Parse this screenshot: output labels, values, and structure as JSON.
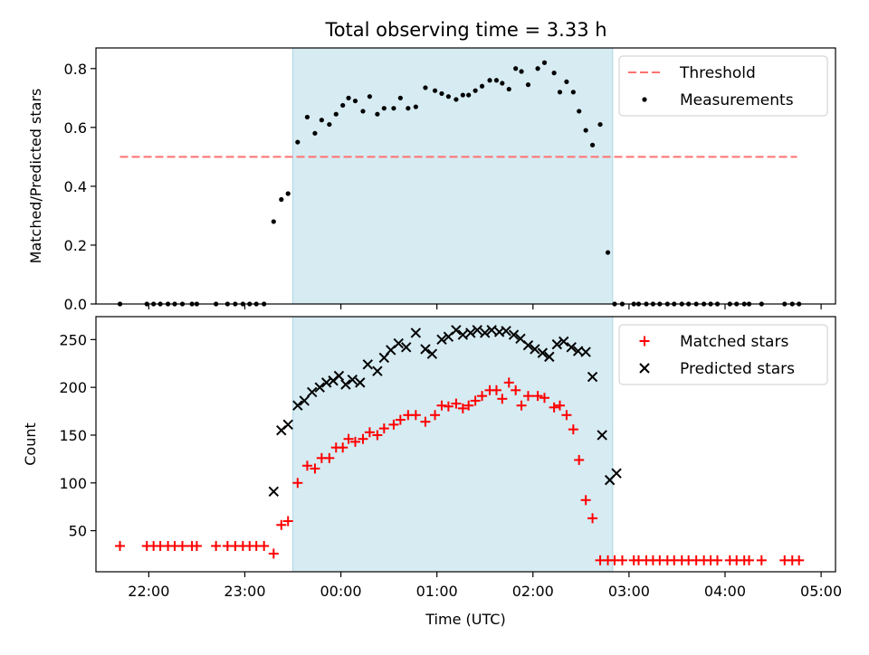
{
  "title": "Total observing time = 3.33 h",
  "colors": {
    "shade": "#add8e6",
    "threshold": "#ff7070",
    "measurement": "#000000",
    "matched": "#ff0000",
    "predicted": "#000000"
  },
  "chart_data": [
    {
      "type": "scatter",
      "panel": "top",
      "ylabel": "Matched/Predicted stars",
      "xlabel": "",
      "xlim": [
        21.45,
        29.15
      ],
      "ylim": [
        0,
        0.87
      ],
      "yticks": [
        0.0,
        0.2,
        0.4,
        0.6,
        0.8
      ],
      "ytick_labels": [
        "0.0",
        "0.2",
        "0.4",
        "0.6",
        "0.8"
      ],
      "shaded_interval": [
        23.5,
        26.83
      ],
      "threshold": {
        "name": "Threshold",
        "value": 0.5,
        "x_range": [
          21.7,
          28.75
        ],
        "style": "dashed"
      },
      "legend_position": "top-right",
      "series": [
        {
          "name": "Measurements",
          "marker": "dot",
          "x": [
            21.7,
            21.98,
            22.05,
            22.12,
            22.2,
            22.27,
            22.35,
            22.45,
            22.5,
            22.7,
            22.82,
            22.9,
            22.98,
            23.05,
            23.12,
            23.2,
            23.3,
            23.38,
            23.45,
            23.55,
            23.65,
            23.73,
            23.8,
            23.88,
            23.95,
            24.02,
            24.08,
            24.15,
            24.23,
            24.3,
            24.38,
            24.45,
            24.55,
            24.62,
            24.7,
            24.78,
            24.88,
            24.98,
            25.05,
            25.12,
            25.2,
            25.27,
            25.33,
            25.4,
            25.47,
            25.55,
            25.62,
            25.68,
            25.75,
            25.82,
            25.88,
            25.95,
            26.05,
            26.12,
            26.22,
            26.28,
            26.35,
            26.42,
            26.48,
            26.55,
            26.62,
            26.7,
            26.78,
            26.85,
            26.93,
            27.05,
            27.1,
            27.18,
            27.25,
            27.32,
            27.4,
            27.47,
            27.55,
            27.62,
            27.7,
            27.78,
            27.85,
            27.92,
            28.05,
            28.12,
            28.2,
            28.25,
            28.38,
            28.62,
            28.7,
            28.77
          ],
          "y": [
            0,
            0,
            0,
            0,
            0,
            0,
            0,
            0,
            0,
            0,
            0,
            0,
            0,
            0,
            0,
            0,
            0.28,
            0.355,
            0.375,
            0.55,
            0.635,
            0.58,
            0.625,
            0.61,
            0.645,
            0.675,
            0.7,
            0.69,
            0.655,
            0.705,
            0.645,
            0.665,
            0.665,
            0.7,
            0.665,
            0.67,
            0.735,
            0.725,
            0.715,
            0.705,
            0.695,
            0.71,
            0.71,
            0.725,
            0.74,
            0.76,
            0.76,
            0.75,
            0.73,
            0.8,
            0.79,
            0.745,
            0.8,
            0.82,
            0.785,
            0.72,
            0.755,
            0.72,
            0.655,
            0.59,
            0.54,
            0.61,
            0.175,
            0,
            0,
            0,
            0,
            0,
            0,
            0,
            0,
            0,
            0,
            0,
            0,
            0,
            0,
            0,
            0,
            0,
            0,
            0,
            0,
            0,
            0,
            0
          ]
        }
      ]
    },
    {
      "type": "scatter",
      "panel": "bottom",
      "ylabel": "Count",
      "xlabel": "Time (UTC)",
      "xlim": [
        21.45,
        29.15
      ],
      "ylim": [
        7,
        274
      ],
      "yticks": [
        50,
        100,
        150,
        200,
        250
      ],
      "ytick_labels": [
        "50",
        "100",
        "150",
        "200",
        "250"
      ],
      "xticks": [
        22,
        23,
        24,
        25,
        26,
        27,
        28,
        29
      ],
      "xtick_labels": [
        "22:00",
        "23:00",
        "00:00",
        "01:00",
        "02:00",
        "03:00",
        "04:00",
        "05:00"
      ],
      "shaded_interval": [
        23.5,
        26.83
      ],
      "legend_position": "top-right",
      "series": [
        {
          "name": "Matched stars",
          "marker": "plus",
          "x": [
            21.7,
            21.98,
            22.05,
            22.12,
            22.2,
            22.27,
            22.35,
            22.45,
            22.5,
            22.7,
            22.82,
            22.9,
            22.98,
            23.05,
            23.12,
            23.2,
            23.3,
            23.38,
            23.45,
            23.55,
            23.65,
            23.73,
            23.8,
            23.88,
            23.95,
            24.02,
            24.08,
            24.15,
            24.23,
            24.3,
            24.38,
            24.45,
            24.55,
            24.62,
            24.7,
            24.78,
            24.88,
            24.98,
            25.05,
            25.12,
            25.2,
            25.27,
            25.33,
            25.4,
            25.47,
            25.55,
            25.62,
            25.68,
            25.75,
            25.82,
            25.88,
            25.95,
            26.05,
            26.12,
            26.22,
            26.28,
            26.35,
            26.42,
            26.48,
            26.55,
            26.62,
            26.7,
            26.78,
            26.85,
            26.93,
            27.05,
            27.1,
            27.18,
            27.25,
            27.32,
            27.4,
            27.47,
            27.55,
            27.62,
            27.7,
            27.78,
            27.85,
            27.92,
            28.05,
            28.12,
            28.2,
            28.25,
            28.38,
            28.62,
            28.7,
            28.77
          ],
          "y": [
            34,
            34,
            34,
            34,
            34,
            34,
            34,
            34,
            34,
            34,
            34,
            34,
            34,
            34,
            34,
            34,
            26,
            56,
            60,
            100,
            118,
            115,
            126,
            126,
            137,
            137,
            146,
            143,
            146,
            153,
            150,
            157,
            161,
            166,
            171,
            171,
            164,
            171,
            181,
            180,
            183,
            178,
            181,
            186,
            191,
            197,
            197,
            188,
            205,
            197,
            181,
            191,
            191,
            189,
            179,
            181,
            171,
            156,
            124,
            82,
            63,
            19,
            19,
            19,
            19,
            19,
            19,
            19,
            19,
            19,
            19,
            19,
            19,
            19,
            19,
            19,
            19,
            19,
            19,
            19,
            19,
            19,
            19,
            19,
            19,
            19
          ]
        },
        {
          "name": "Predicted stars",
          "marker": "x",
          "x": [
            23.3,
            23.38,
            23.45,
            23.55,
            23.62,
            23.7,
            23.78,
            23.85,
            23.92,
            23.98,
            24.05,
            24.12,
            24.2,
            24.28,
            24.38,
            24.45,
            24.52,
            24.6,
            24.68,
            24.78,
            24.88,
            24.95,
            25.05,
            25.12,
            25.2,
            25.27,
            25.35,
            25.42,
            25.5,
            25.57,
            25.65,
            25.72,
            25.8,
            25.87,
            25.95,
            26.02,
            26.1,
            26.17,
            26.25,
            26.32,
            26.4,
            26.47,
            26.55,
            26.62,
            26.72,
            26.8,
            26.87
          ],
          "y": [
            91,
            155,
            161,
            181,
            186,
            195,
            200,
            205,
            207,
            212,
            203,
            208,
            205,
            224,
            217,
            231,
            239,
            246,
            242,
            257,
            240,
            235,
            250,
            253,
            260,
            255,
            257,
            260,
            257,
            260,
            258,
            259,
            255,
            251,
            244,
            240,
            236,
            232,
            245,
            248,
            242,
            238,
            237,
            211,
            150,
            103,
            110
          ]
        }
      ]
    }
  ]
}
